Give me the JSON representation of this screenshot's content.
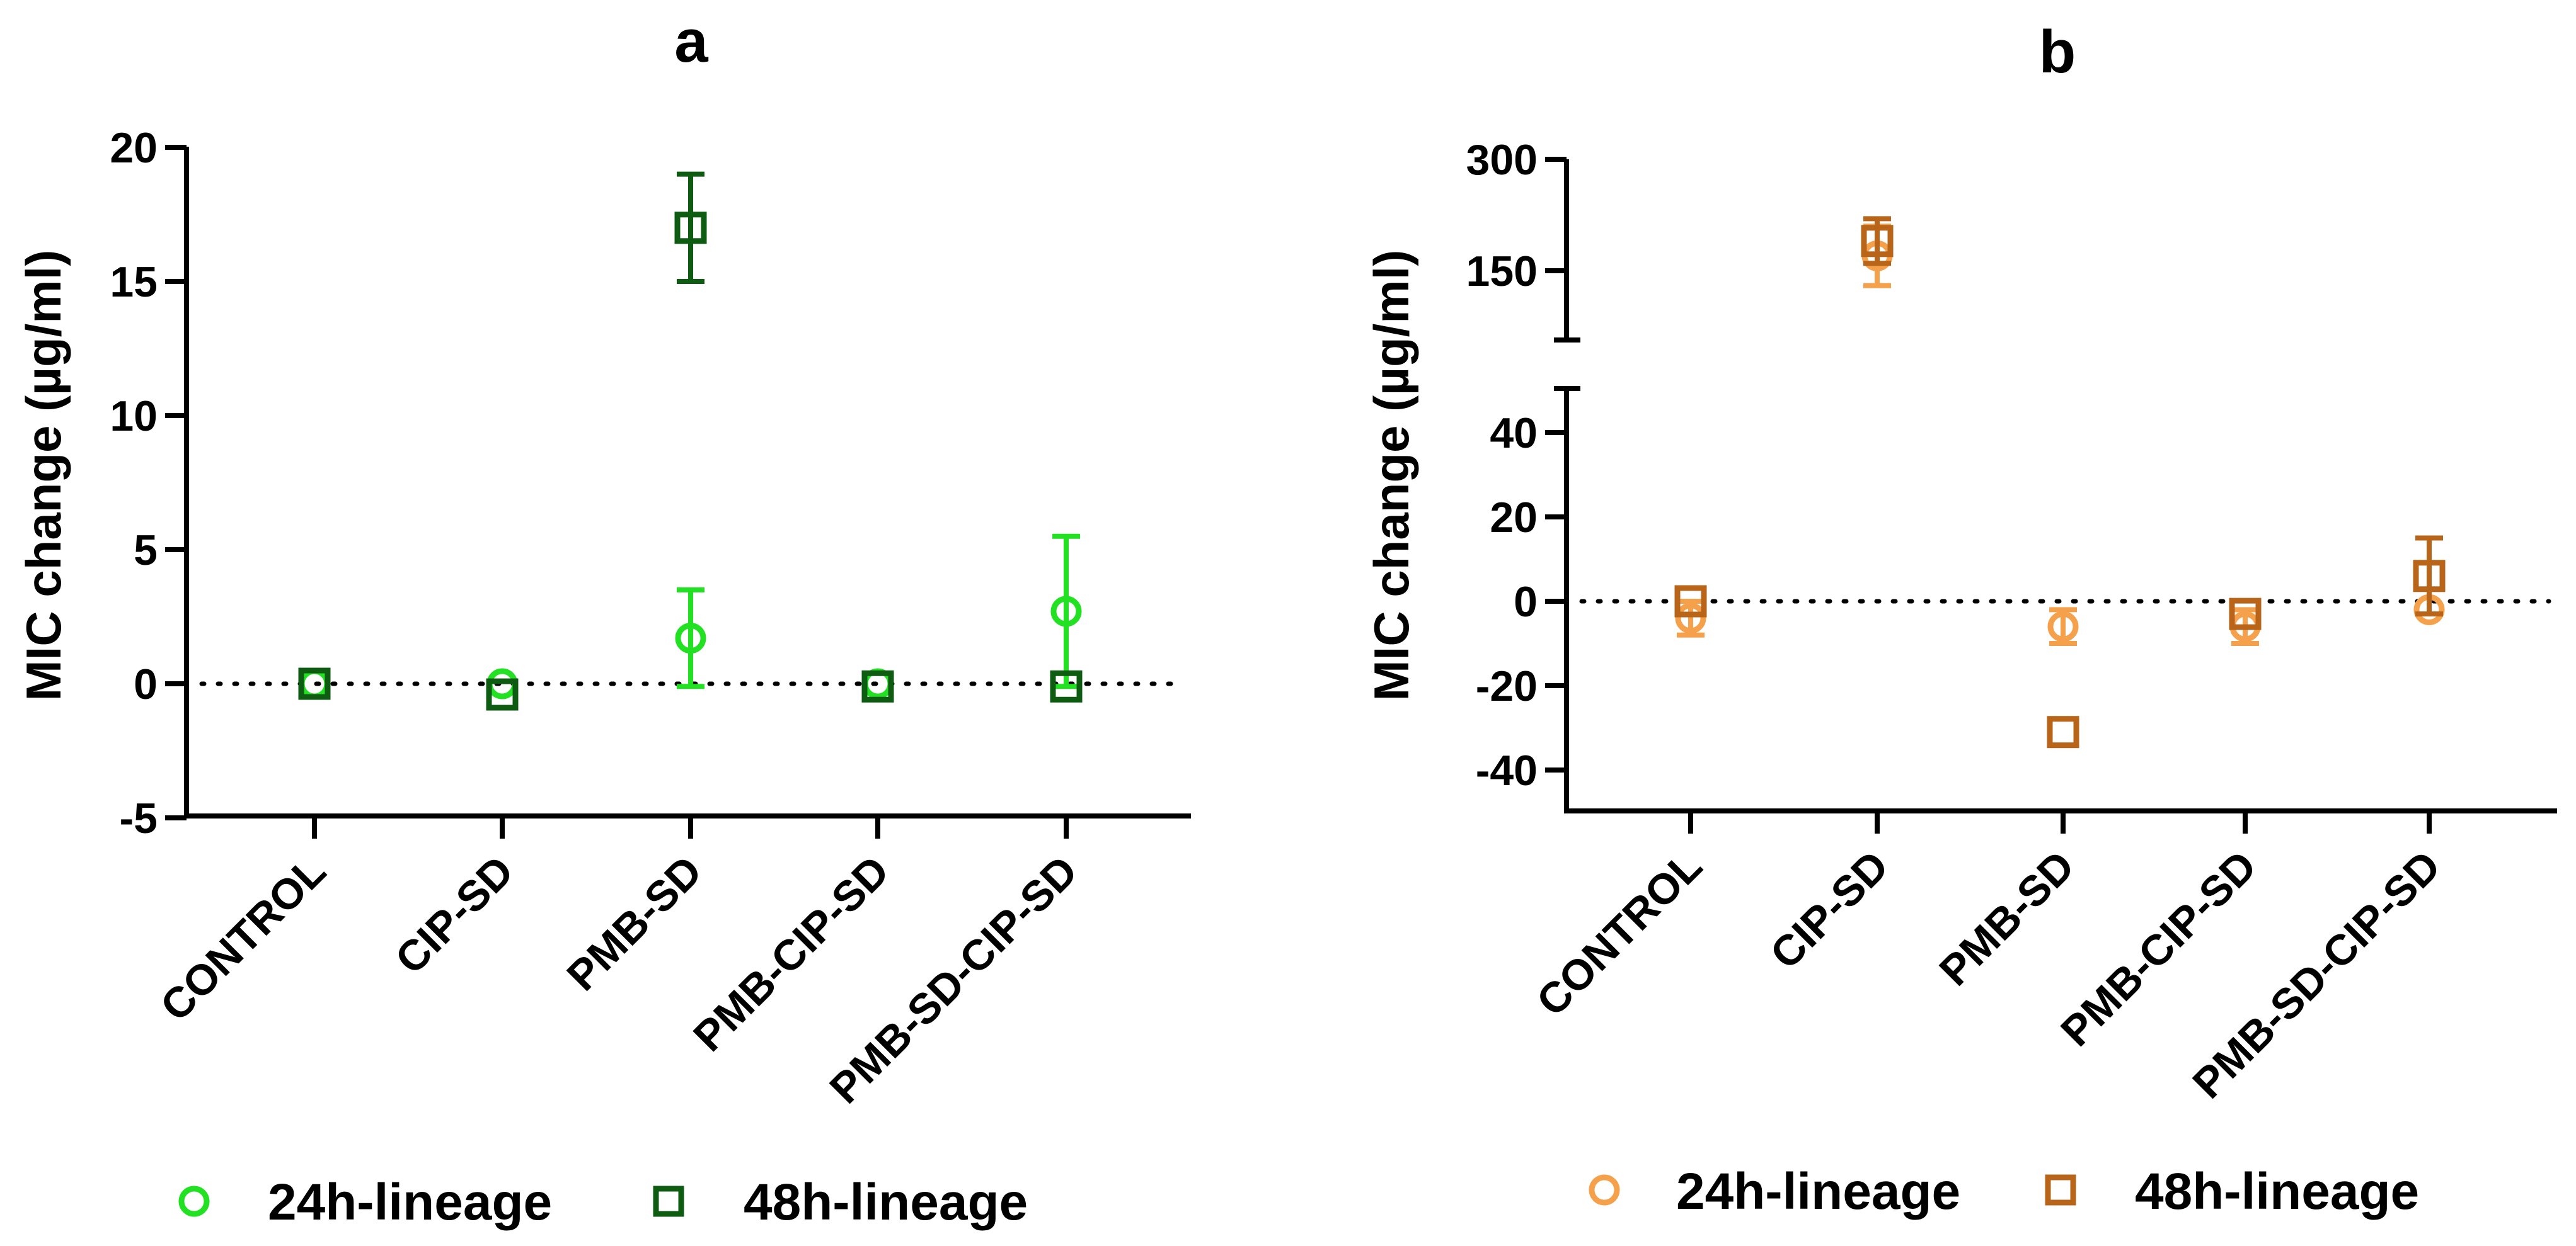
{
  "chart_data": [
    {
      "type": "scatter",
      "title": "a",
      "xlabel": "",
      "ylabel": "MIC change (µg/ml)",
      "categories": [
        "CONTROL",
        "CIP-SD",
        "PMB-SD",
        "PMB-CIP-SD",
        "PMB-SD-CIP-SD"
      ],
      "ylim": [
        -5,
        20
      ],
      "yticks": [
        -5,
        0,
        5,
        10,
        15,
        20
      ],
      "reference_line": 0,
      "series": [
        {
          "name": "24h-lineage",
          "marker": "circle",
          "color": "#22e022",
          "values": [
            0,
            0,
            1.7,
            0,
            2.7
          ],
          "errors": [
            0,
            0,
            1.8,
            0,
            2.8
          ]
        },
        {
          "name": "48h-lineage",
          "marker": "square",
          "color": "#0e5c12",
          "values": [
            0,
            -0.4,
            17,
            -0.1,
            -0.1
          ],
          "errors": [
            0,
            0,
            2,
            0,
            0
          ]
        }
      ]
    },
    {
      "type": "scatter",
      "title": "b",
      "xlabel": "",
      "ylabel": "MIC change (µg/ml)",
      "categories": [
        "CONTROL",
        "CIP-SD",
        "PMB-SD",
        "PMB-CIP-SD",
        "PMB-SD-CIP-SD"
      ],
      "ylim": [
        -50,
        300
      ],
      "axis_break": [
        50,
        60
      ],
      "yticks": [
        -40,
        -20,
        0,
        20,
        40,
        150,
        300
      ],
      "reference_line": 0,
      "series": [
        {
          "name": "24h-lineage",
          "marker": "circle",
          "color": "#f5a04a",
          "values": [
            -4,
            170,
            -6,
            -6,
            -2
          ],
          "errors": [
            4,
            40,
            4,
            4,
            0
          ]
        },
        {
          "name": "48h-lineage",
          "marker": "square",
          "color": "#b8651a",
          "values": [
            0,
            190,
            -31,
            -3,
            6
          ],
          "errors": [
            0,
            30,
            0,
            0,
            9
          ]
        }
      ]
    }
  ]
}
